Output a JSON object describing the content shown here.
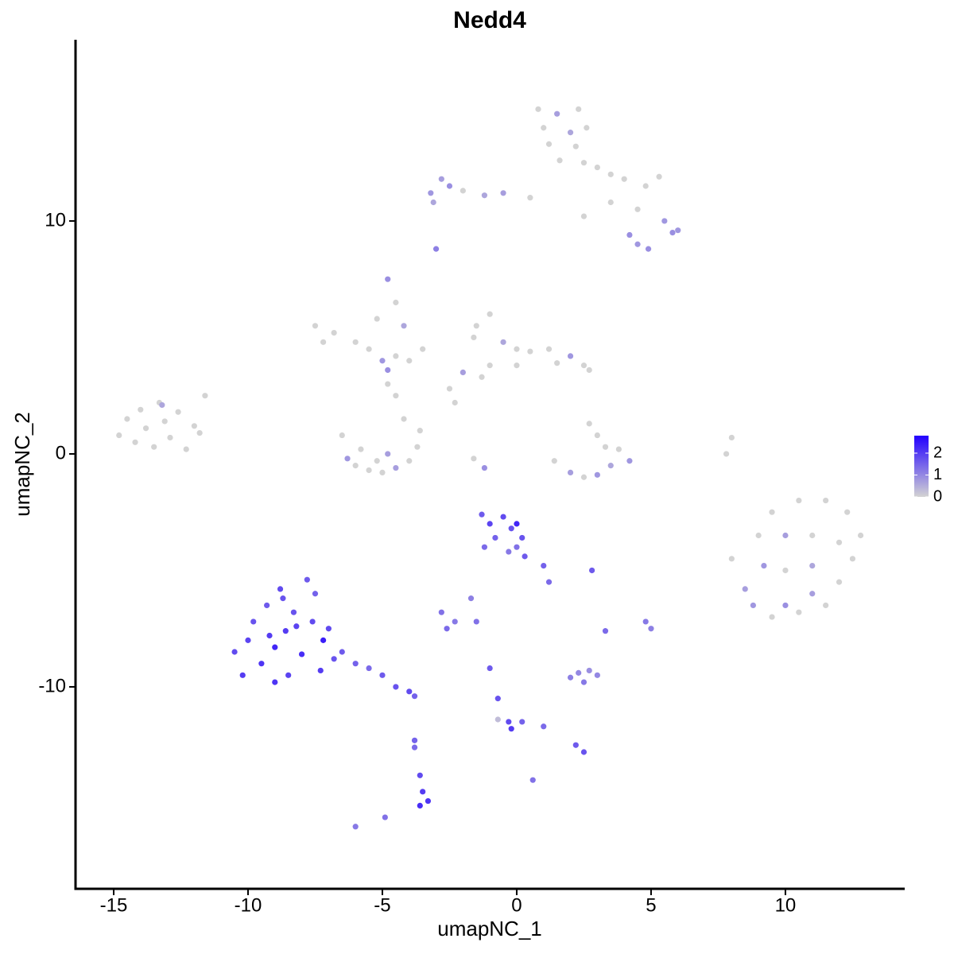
{
  "chart_data": {
    "type": "scatter",
    "title": "Nedd4",
    "x_label": "umapNC_1",
    "y_label": "umapNC_2",
    "xlim": [
      -16.42,
      14.44
    ],
    "ylim": [
      -18.67,
      17.78
    ],
    "xticks": [
      -15,
      -10,
      -5,
      0,
      5,
      10
    ],
    "yticks": [
      -10,
      0,
      10
    ],
    "color_low": "#D3D3D3",
    "color_high": "#2200FF",
    "color_lim": [
      0,
      2.8
    ],
    "colorbar_ticks": [
      0,
      1,
      2
    ],
    "x": [
      -14.8,
      -14.5,
      -14.2,
      -14,
      -13.8,
      -13.5,
      -13.3,
      -13.1,
      -12.9,
      -12.6,
      -12.3,
      -12,
      -11.6,
      -11.8,
      -13.2,
      -7.5,
      -7.2,
      -6.8,
      -6,
      -5.5,
      -5,
      -4.8,
      -4.5,
      -4,
      -3.5,
      -5.2,
      -4.8,
      -4.5,
      -4.2,
      -6.5,
      -6.3,
      -6,
      -5.5,
      -5,
      -4.5,
      -4,
      -3.7,
      -3.6,
      -4.2,
      -4.5,
      -4.8,
      -5.8,
      -4.8,
      -5.2,
      -1.5,
      -1.6,
      -1,
      -0.5,
      0,
      0.5,
      1.2,
      2,
      2.5,
      2.7,
      -1,
      -1.3,
      -2,
      -2.5,
      -2.3,
      0,
      1.5,
      0.8,
      1.5,
      2.3,
      1,
      2,
      2.6,
      1.2,
      2.2,
      1.6,
      2.5,
      3,
      3.5,
      4,
      4.8,
      5.3,
      4.5,
      5.5,
      5.8,
      6,
      4.2,
      4.5,
      4.9,
      3.5,
      2.5,
      0.5,
      -0.5,
      -1.2,
      -2,
      -2.8,
      -3.2,
      -3.1,
      -2.5,
      -3,
      2.7,
      3,
      3.3,
      3.5,
      3,
      2.5,
      2,
      1.4,
      4.2,
      3.8,
      -1.2,
      -1.6,
      7.8,
      8,
      8,
      8.5,
      8.8,
      9.5,
      10,
      10.5,
      11,
      11.5,
      12,
      12.5,
      12.8,
      12.3,
      11.5,
      10.5,
      9.5,
      9,
      10,
      11,
      10,
      11,
      9.2,
      12,
      -10.5,
      -10.2,
      -10,
      -9.8,
      -9.5,
      -9.3,
      -9,
      -8.8,
      -8.6,
      -8.5,
      -8.3,
      -8,
      -7.8,
      -7.6,
      -7.3,
      -7.5,
      -7.2,
      -6.8,
      -6.5,
      -6,
      -5.5,
      -5,
      -4.5,
      -4,
      -3.8,
      -9.2,
      -8.2,
      -9,
      -7,
      -8.7,
      -3.8,
      -3.6,
      -3.5,
      -3.3,
      -3.6,
      -3.8,
      -6,
      -4.9,
      -1.3,
      -1,
      -0.5,
      0,
      0.2,
      -0.8,
      -1.2,
      -0.3,
      0.3,
      1,
      1.2,
      0,
      -0.2,
      -2.8,
      -2.3,
      -2.6,
      -1.7,
      -1.5,
      2.8,
      3.3,
      4.8,
      5,
      2.3,
      2,
      2.7,
      3,
      2.5,
      -1,
      -0.7,
      -0.3,
      -0.2,
      0.2,
      1,
      2.2,
      2.5,
      0.6,
      -0.7
    ],
    "y": [
      0.8,
      1.5,
      0.5,
      1.9,
      1.1,
      0.3,
      2.2,
      1.4,
      0.7,
      1.8,
      0.2,
      1.2,
      2.5,
      0.9,
      2.1,
      5.5,
      4.8,
      5.2,
      4.8,
      4.5,
      4,
      3.6,
      4.2,
      4,
      4.5,
      5.8,
      7.5,
      6.5,
      5.5,
      0.8,
      -0.2,
      -0.5,
      -0.7,
      -0.8,
      -0.6,
      -0.3,
      0.3,
      1,
      1.5,
      2.5,
      3,
      0.2,
      0,
      -0.3,
      5.5,
      5,
      6,
      4.8,
      4.5,
      4.4,
      4.5,
      4.2,
      3.8,
      3.6,
      3.8,
      3.3,
      3.5,
      2.8,
      2.2,
      3.8,
      3.9,
      14.8,
      14.6,
      14.8,
      14,
      13.8,
      14,
      13.3,
      13.2,
      12.6,
      12.5,
      12.3,
      12,
      11.8,
      11.5,
      11.9,
      10.5,
      10,
      9.5,
      9.6,
      9.4,
      9,
      8.8,
      10.8,
      10.2,
      11,
      11.2,
      11.1,
      11.3,
      11.8,
      11.2,
      10.8,
      11.5,
      8.8,
      1.3,
      0.8,
      0.3,
      -0.5,
      -0.9,
      -1,
      -0.8,
      -0.3,
      -0.3,
      0.2,
      -0.6,
      -0.2,
      0,
      0.7,
      -4.5,
      -5.8,
      -6.5,
      -7,
      -6.5,
      -6.8,
      -6,
      -6.5,
      -5.5,
      -4.5,
      -3.5,
      -2.5,
      -2,
      -2,
      -2.5,
      -3.5,
      -3.5,
      -3.5,
      -5,
      -4.8,
      -4.8,
      -3.8,
      -8.5,
      -9.5,
      -8,
      -7.2,
      -9,
      -6.5,
      -8.3,
      -5.8,
      -7.6,
      -9.5,
      -6.8,
      -8.6,
      -5.4,
      -7.2,
      -9.3,
      -6,
      -8,
      -8.8,
      -8.5,
      -9,
      -9.2,
      -9.5,
      -10,
      -10.2,
      -10.4,
      -7.8,
      -7.4,
      -9.8,
      -7.5,
      -6.2,
      -12.3,
      -13.8,
      -14.5,
      -14.9,
      -15.1,
      -12.6,
      -16,
      -15.6,
      -2.6,
      -3,
      -2.7,
      -3,
      -3.6,
      -3.6,
      -4,
      -4.2,
      -4.4,
      -4.8,
      -5.5,
      -4,
      -3.2,
      -6.8,
      -7.2,
      -7.5,
      -6.2,
      -7.2,
      -5,
      -7.6,
      -7.2,
      -7.5,
      -9.4,
      -9.6,
      -9.3,
      -9.5,
      -9.8,
      -9.2,
      -10.5,
      -11.5,
      -11.8,
      -11.5,
      -11.7,
      -12.5,
      -12.8,
      -14,
      -11.4
    ],
    "values": [
      0,
      0,
      0,
      0,
      0,
      0,
      0,
      0,
      0,
      0,
      0,
      0,
      0,
      0,
      0.6,
      0,
      0,
      0,
      0,
      0,
      0.8,
      0.9,
      0,
      0,
      0,
      0,
      0.9,
      0,
      0.6,
      0,
      0.8,
      0,
      0,
      0,
      0.7,
      0,
      0,
      0,
      0,
      0,
      0,
      0,
      0.7,
      0,
      0,
      0,
      0,
      0.6,
      0,
      0,
      0,
      0.8,
      0,
      0,
      0,
      0,
      0.7,
      0,
      0,
      0,
      0,
      0,
      0.7,
      0,
      0,
      0.6,
      0,
      0,
      0,
      0,
      0,
      0,
      0,
      0,
      0,
      0,
      0,
      0.8,
      0.9,
      0.8,
      0.9,
      0.8,
      0.9,
      0,
      0,
      0,
      0.7,
      0.6,
      0,
      0.7,
      0.8,
      0.6,
      0.9,
      1.1,
      0,
      0,
      0,
      0.6,
      0.8,
      0,
      0.7,
      0,
      0.8,
      0,
      0.9,
      0,
      0,
      0,
      0,
      0.7,
      0.8,
      0,
      0.9,
      0,
      0.7,
      0,
      0,
      0,
      0,
      0,
      0,
      0,
      0,
      0,
      0.7,
      0,
      0,
      0.6,
      0.8,
      0,
      1.8,
      2.0,
      1.9,
      1.7,
      2.1,
      1.6,
      2.3,
      1.8,
      2.0,
      1.9,
      1.7,
      2.2,
      1.6,
      1.8,
      2.0,
      1.5,
      2.4,
      1.7,
      1.6,
      1.5,
      1.4,
      1.6,
      1.7,
      1.8,
      1.5,
      2.0,
      1.9,
      2.1,
      1.8,
      1.7,
      1.5,
      1.8,
      2.0,
      2.1,
      2.2,
      1.4,
      1.2,
      1.3,
      1.6,
      1.9,
      1.8,
      2.3,
      1.7,
      1.5,
      1.4,
      1.2,
      1.6,
      1.5,
      1.4,
      1.3,
      1.7,
      1.3,
      1.2,
      1.4,
      1.1,
      1.3,
      1.6,
      1.4,
      1.2,
      1.1,
      1.0,
      1.1,
      0.9,
      1.0,
      1.2,
      1.6,
      1.7,
      1.8,
      2.0,
      1.5,
      1.4,
      1.6,
      1.7,
      1.3,
      0.3
    ]
  }
}
